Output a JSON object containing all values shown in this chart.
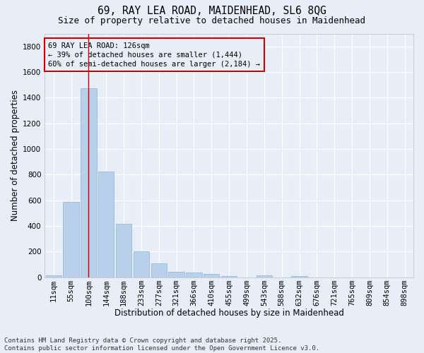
{
  "title1": "69, RAY LEA ROAD, MAIDENHEAD, SL6 8QG",
  "title2": "Size of property relative to detached houses in Maidenhead",
  "xlabel": "Distribution of detached houses by size in Maidenhead",
  "ylabel": "Number of detached properties",
  "categories": [
    "11sqm",
    "55sqm",
    "100sqm",
    "144sqm",
    "188sqm",
    "233sqm",
    "277sqm",
    "321sqm",
    "366sqm",
    "410sqm",
    "455sqm",
    "499sqm",
    "543sqm",
    "588sqm",
    "632sqm",
    "676sqm",
    "721sqm",
    "765sqm",
    "809sqm",
    "854sqm",
    "898sqm"
  ],
  "values": [
    15,
    585,
    1475,
    825,
    415,
    200,
    105,
    40,
    38,
    25,
    10,
    0,
    15,
    0,
    10,
    0,
    0,
    0,
    0,
    0,
    0
  ],
  "bar_color": "#b8d0ea",
  "bar_edge_color": "#8cb4d8",
  "marker_index": 2,
  "marker_color": "#cc0000",
  "ylim": [
    0,
    1900
  ],
  "yticks": [
    0,
    200,
    400,
    600,
    800,
    1000,
    1200,
    1400,
    1600,
    1800
  ],
  "annotation_text": "69 RAY LEA ROAD: 126sqm\n← 39% of detached houses are smaller (1,444)\n60% of semi-detached houses are larger (2,184) →",
  "annotation_box_color": "#cc0000",
  "footer": "Contains HM Land Registry data © Crown copyright and database right 2025.\nContains public sector information licensed under the Open Government Licence v3.0.",
  "bg_color": "#e8eef8",
  "grid_color": "#ffffff",
  "title_fontsize": 10.5,
  "subtitle_fontsize": 9,
  "axis_label_fontsize": 8.5,
  "tick_fontsize": 7.5,
  "annotation_fontsize": 7.5,
  "footer_fontsize": 6.5
}
